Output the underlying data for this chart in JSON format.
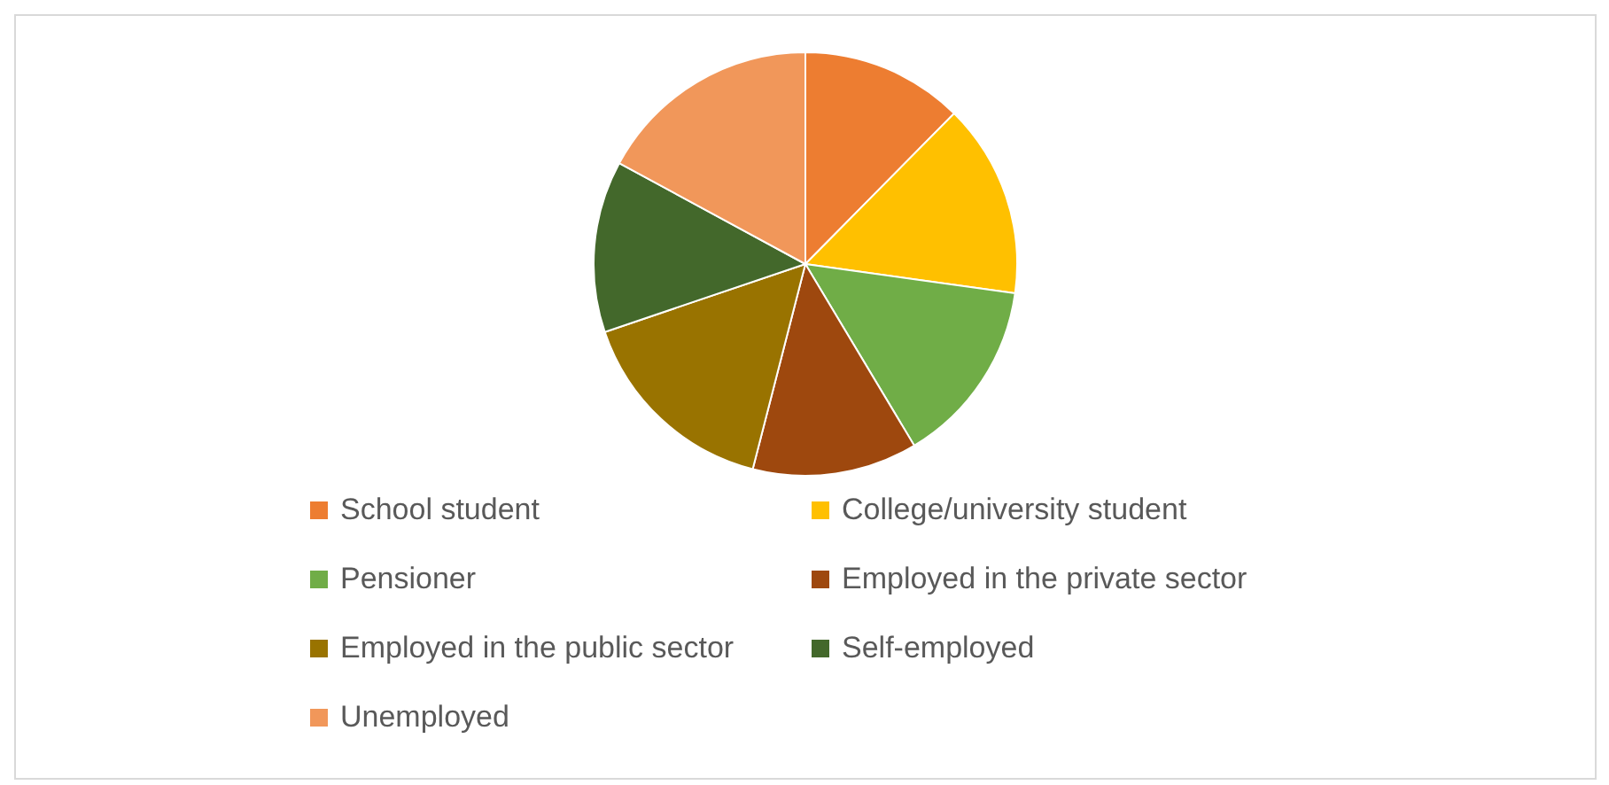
{
  "chart_data": {
    "type": "pie",
    "categories": [
      "School student",
      "College/university student",
      "Pensioner",
      "Employed in the private sector",
      "Employed in the public sector",
      "Self-employed",
      "Unemployed"
    ],
    "values": [
      12.4,
      14.8,
      14.2,
      12.6,
      15.8,
      13.1,
      17.1
    ],
    "colors": [
      "#ed7d31",
      "#ffc000",
      "#70ad47",
      "#9e480e",
      "#997300",
      "#43682b",
      "#f1975a"
    ],
    "legend": "bottom"
  }
}
